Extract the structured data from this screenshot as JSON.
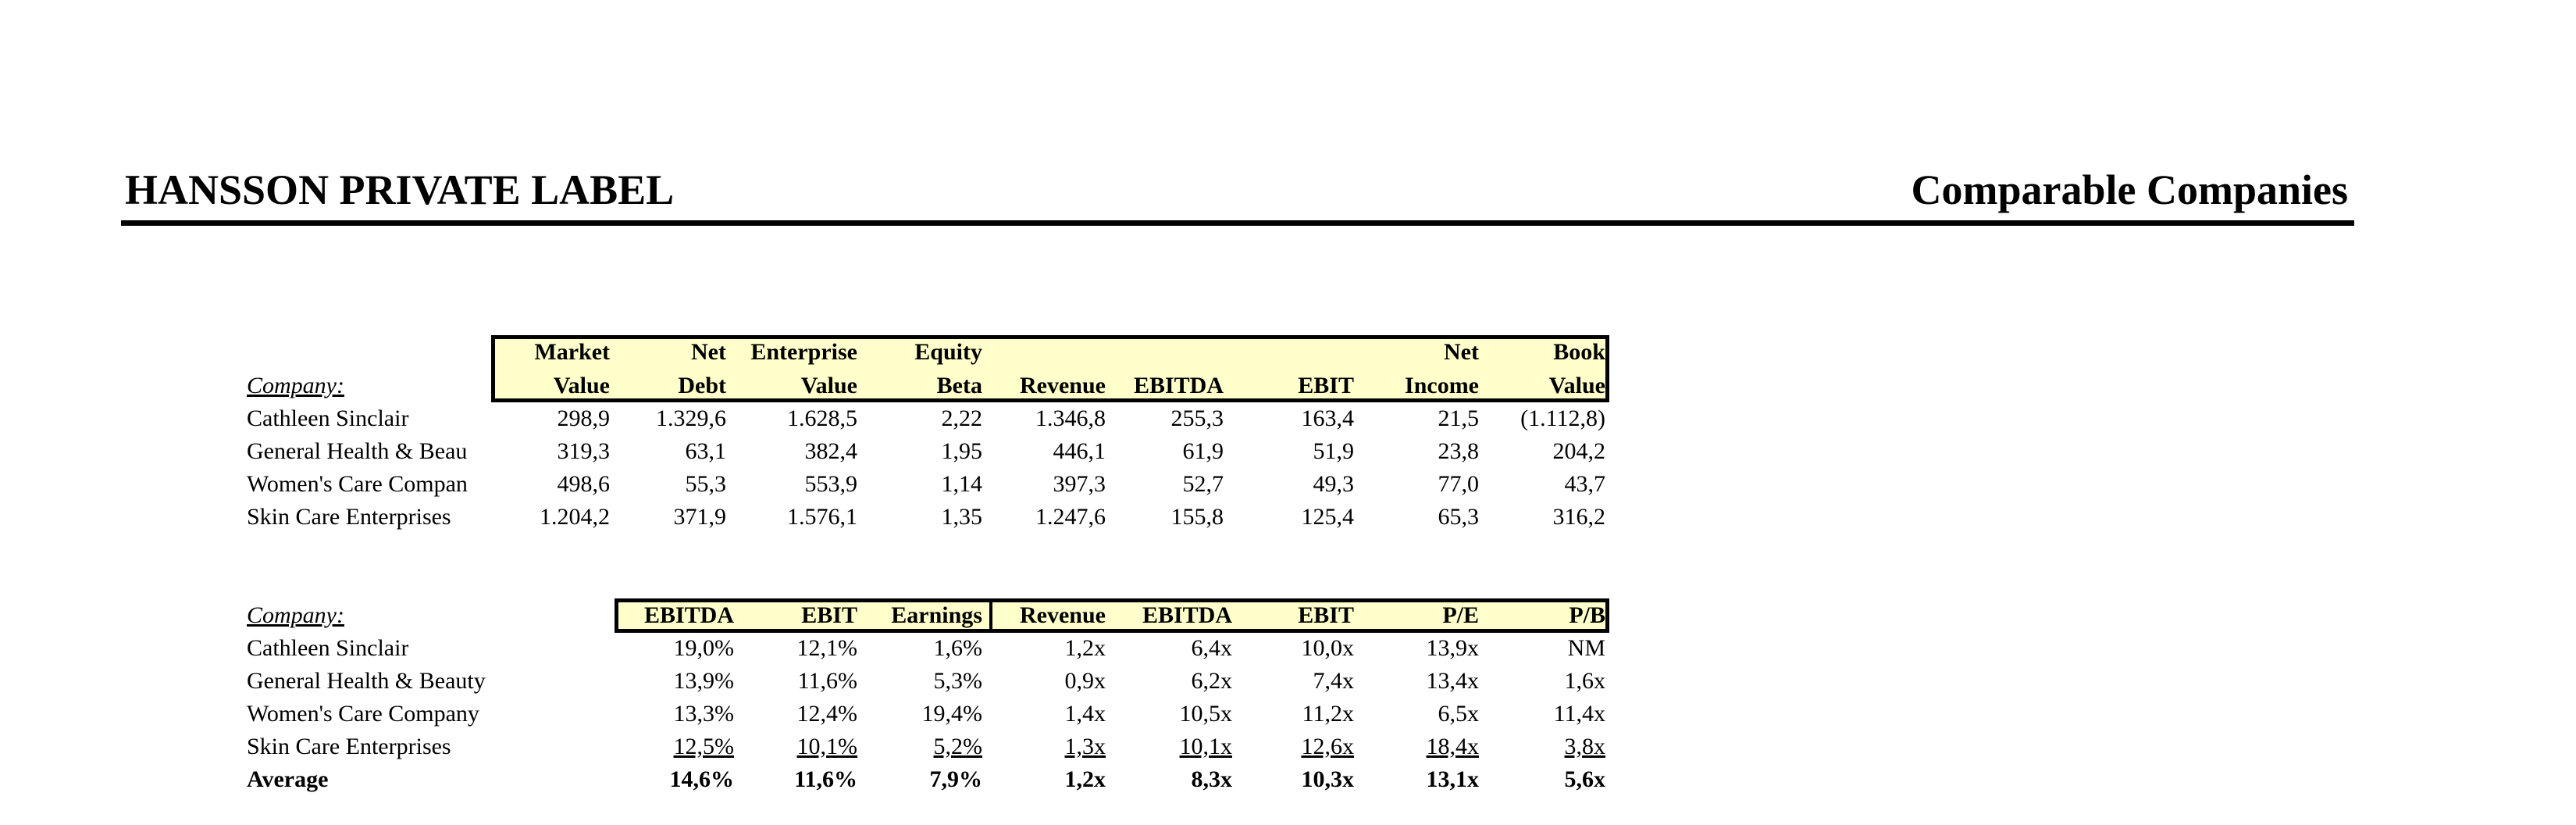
{
  "header": {
    "left_title": "HANSSON PRIVATE LABEL",
    "right_title": "Comparable Companies"
  },
  "colors": {
    "header_fill": "#ffffcc",
    "border": "#000000"
  },
  "table1": {
    "company_label": "Company:",
    "columns": [
      {
        "line1": "Market",
        "line2": "Value"
      },
      {
        "line1": "Net",
        "line2": "Debt"
      },
      {
        "line1": "Enterprise",
        "line2": "Value"
      },
      {
        "line1": "Equity",
        "line2": "Beta"
      },
      {
        "line1": "",
        "line2": "Revenue"
      },
      {
        "line1": "",
        "line2": "EBITDA"
      },
      {
        "line1": "",
        "line2": "EBIT"
      },
      {
        "line1": "Net",
        "line2": "Income"
      },
      {
        "line1": "Book",
        "line2": "Value"
      }
    ],
    "rows": [
      {
        "company": "Cathleen Sinclair",
        "values": [
          "298,9",
          "1.329,6",
          "1.628,5",
          "2,22",
          "1.346,8",
          "255,3",
          "163,4",
          "21,5",
          "(1.112,8)"
        ]
      },
      {
        "company": "General Health & Beau",
        "values": [
          "319,3",
          "63,1",
          "382,4",
          "1,95",
          "446,1",
          "61,9",
          "51,9",
          "23,8",
          "204,2"
        ]
      },
      {
        "company": "Women's Care Compan",
        "values": [
          "498,6",
          "55,3",
          "553,9",
          "1,14",
          "397,3",
          "52,7",
          "49,3",
          "77,0",
          "43,7"
        ]
      },
      {
        "company": "Skin Care Enterprises",
        "values": [
          "1.204,2",
          "371,9",
          "1.576,1",
          "1,35",
          "1.247,6",
          "155,8",
          "125,4",
          "65,3",
          "316,2"
        ]
      }
    ]
  },
  "table2": {
    "company_label": "Company:",
    "columns": [
      "EBITDA",
      "EBIT",
      "Earnings",
      "Revenue",
      "EBITDA",
      "EBIT",
      "P/E",
      "P/B"
    ],
    "rows": [
      {
        "company": "Cathleen Sinclair",
        "values": [
          "19,0%",
          "12,1%",
          "1,6%",
          "1,2x",
          "6,4x",
          "10,0x",
          "13,9x",
          "NM"
        ]
      },
      {
        "company": "General Health & Beauty",
        "values": [
          "13,9%",
          "11,6%",
          "5,3%",
          "0,9x",
          "6,2x",
          "7,4x",
          "13,4x",
          "1,6x"
        ]
      },
      {
        "company": "Women's Care Company",
        "values": [
          "13,3%",
          "12,4%",
          "19,4%",
          "1,4x",
          "10,5x",
          "11,2x",
          "6,5x",
          "11,4x"
        ]
      },
      {
        "company": "Skin Care Enterprises",
        "values": [
          "12,5%",
          "10,1%",
          "5,2%",
          "1,3x",
          "10,1x",
          "12,6x",
          "18,4x",
          "3,8x"
        ]
      }
    ],
    "average": {
      "label": "Average",
      "values": [
        "14,6%",
        "11,6%",
        "7,9%",
        "1,2x",
        "8,3x",
        "10,3x",
        "13,1x",
        "5,6x"
      ]
    }
  }
}
